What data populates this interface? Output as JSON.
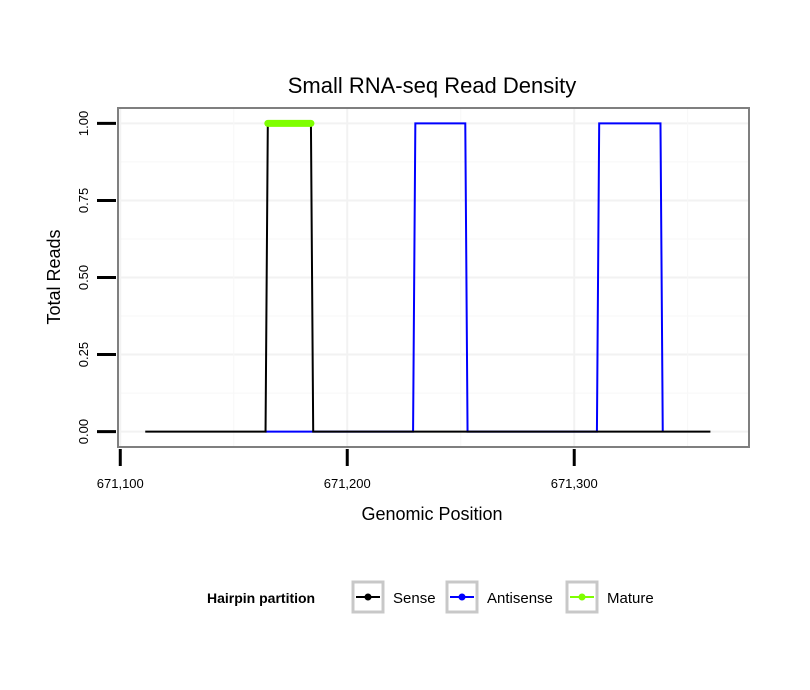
{
  "chart_data": {
    "type": "line",
    "title": "Small RNA-seq Read Density",
    "xlabel": "Genomic Position",
    "ylabel": "Total Reads",
    "xlim": [
      671099,
      671377
    ],
    "ylim": [
      -0.05,
      1.05
    ],
    "x_ticks": [
      671100,
      671200,
      671300
    ],
    "x_tick_labels": [
      "671,100",
      "671,200",
      "671,300"
    ],
    "y_ticks": [
      0,
      0.25,
      0.5,
      0.75,
      1.0
    ],
    "y_tick_labels": [
      "0.00",
      "0.25",
      "0.50",
      "0.75",
      "1.00"
    ],
    "grid": true,
    "legend": {
      "title": "Hairpin partition",
      "position": "bottom"
    },
    "series": [
      {
        "name": "Sense",
        "color": "#000000",
        "x": [
          671111,
          671164,
          671165,
          671184,
          671185,
          671360
        ],
        "y": [
          0,
          0,
          1,
          1,
          0,
          0
        ]
      },
      {
        "name": "Antisense",
        "color": "#0000ff",
        "x": [
          671164,
          671185,
          671229,
          671230,
          671252,
          671253,
          671310,
          671311,
          671338,
          671339
        ],
        "y": [
          0,
          0,
          0,
          1,
          1,
          0,
          0,
          1,
          1,
          0
        ]
      },
      {
        "name": "Mature",
        "color": "#7fff00",
        "x": [
          671165,
          671184
        ],
        "y": [
          1,
          1
        ]
      }
    ]
  }
}
